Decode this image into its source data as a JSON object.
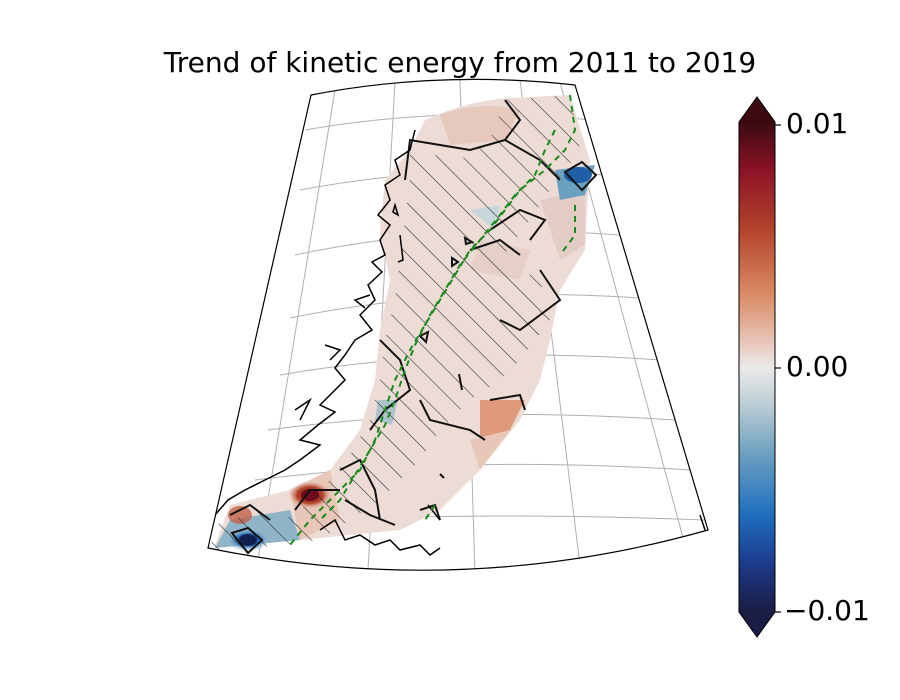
{
  "title": "Trend of kinetic energy from 2011 to 2019",
  "colorbar": {
    "max_label": "0.01",
    "mid_label": "0.00",
    "min_label": "−0.01",
    "colors": [
      "#1b1d44",
      "#1c3b8c",
      "#1f6fbf",
      "#6aa0c0",
      "#b9ccd3",
      "#ebeaea",
      "#e8c6b8",
      "#d98a63",
      "#b4442a",
      "#8c1327",
      "#3b0a10"
    ]
  },
  "map": {
    "projection": "conic",
    "hatch": "significance hatching",
    "contour_color": "#000000",
    "dashed_line_color": "#1a8a1a"
  }
}
